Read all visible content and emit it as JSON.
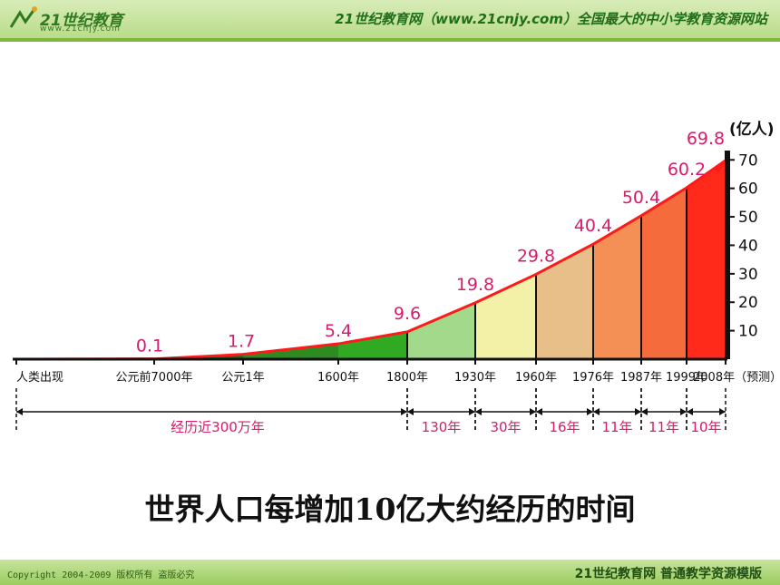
{
  "header": {
    "logo_text": "21世纪教育",
    "logo_sub": "www.21cnjy.com",
    "slogan": "21世纪教育网（www.21cnjy.com）全国最大的中小学教育资源网站"
  },
  "footer": {
    "copyright": "Copyright 2004-2009 版权所有 盗版必究",
    "right": "21世纪教育网    普通教学资源模版"
  },
  "caption": "世界人口每增加10亿大约经历的时间",
  "chart_data": {
    "type": "area",
    "unit_label": "(亿人)",
    "yticks": [
      10,
      20,
      30,
      40,
      50,
      60,
      70
    ],
    "ylim": [
      0,
      72
    ],
    "points": [
      {
        "label": "人类出现",
        "value": null
      },
      {
        "label": "公元前7000年",
        "value": 0.1
      },
      {
        "label": "公元1年",
        "value": 1.7
      },
      {
        "label": "1600年",
        "value": 5.4
      },
      {
        "label": "1800年",
        "value": 9.6
      },
      {
        "label": "1930年",
        "value": 19.8
      },
      {
        "label": "1960年",
        "value": 29.8
      },
      {
        "label": "1976年",
        "value": 40.4
      },
      {
        "label": "1987年",
        "value": 50.4
      },
      {
        "label": "1999年",
        "value": 60.2
      },
      {
        "label": "2008年（预测）",
        "value": 69.8
      }
    ],
    "value_labels": [
      "0.1",
      "1.7",
      "5.4",
      "9.6",
      "19.8",
      "29.8",
      "40.4",
      "50.4",
      "60.2",
      "69.8"
    ],
    "intervals": [
      {
        "label": "经历近300万年"
      },
      {
        "label": "130年"
      },
      {
        "label": "30年"
      },
      {
        "label": "16年"
      },
      {
        "label": "11年"
      },
      {
        "label": "11年"
      },
      {
        "label": "10年"
      }
    ],
    "segment_colors": [
      "#1e6e1a",
      "#1e6e1a",
      "#2e8b22",
      "#2faa22",
      "#a3d98a",
      "#f3f1a8",
      "#e8bf88",
      "#f49055",
      "#f66b3c",
      "#ff2a1a"
    ],
    "line_color": "#ff1a1a",
    "label_color": "#d81b6a"
  }
}
